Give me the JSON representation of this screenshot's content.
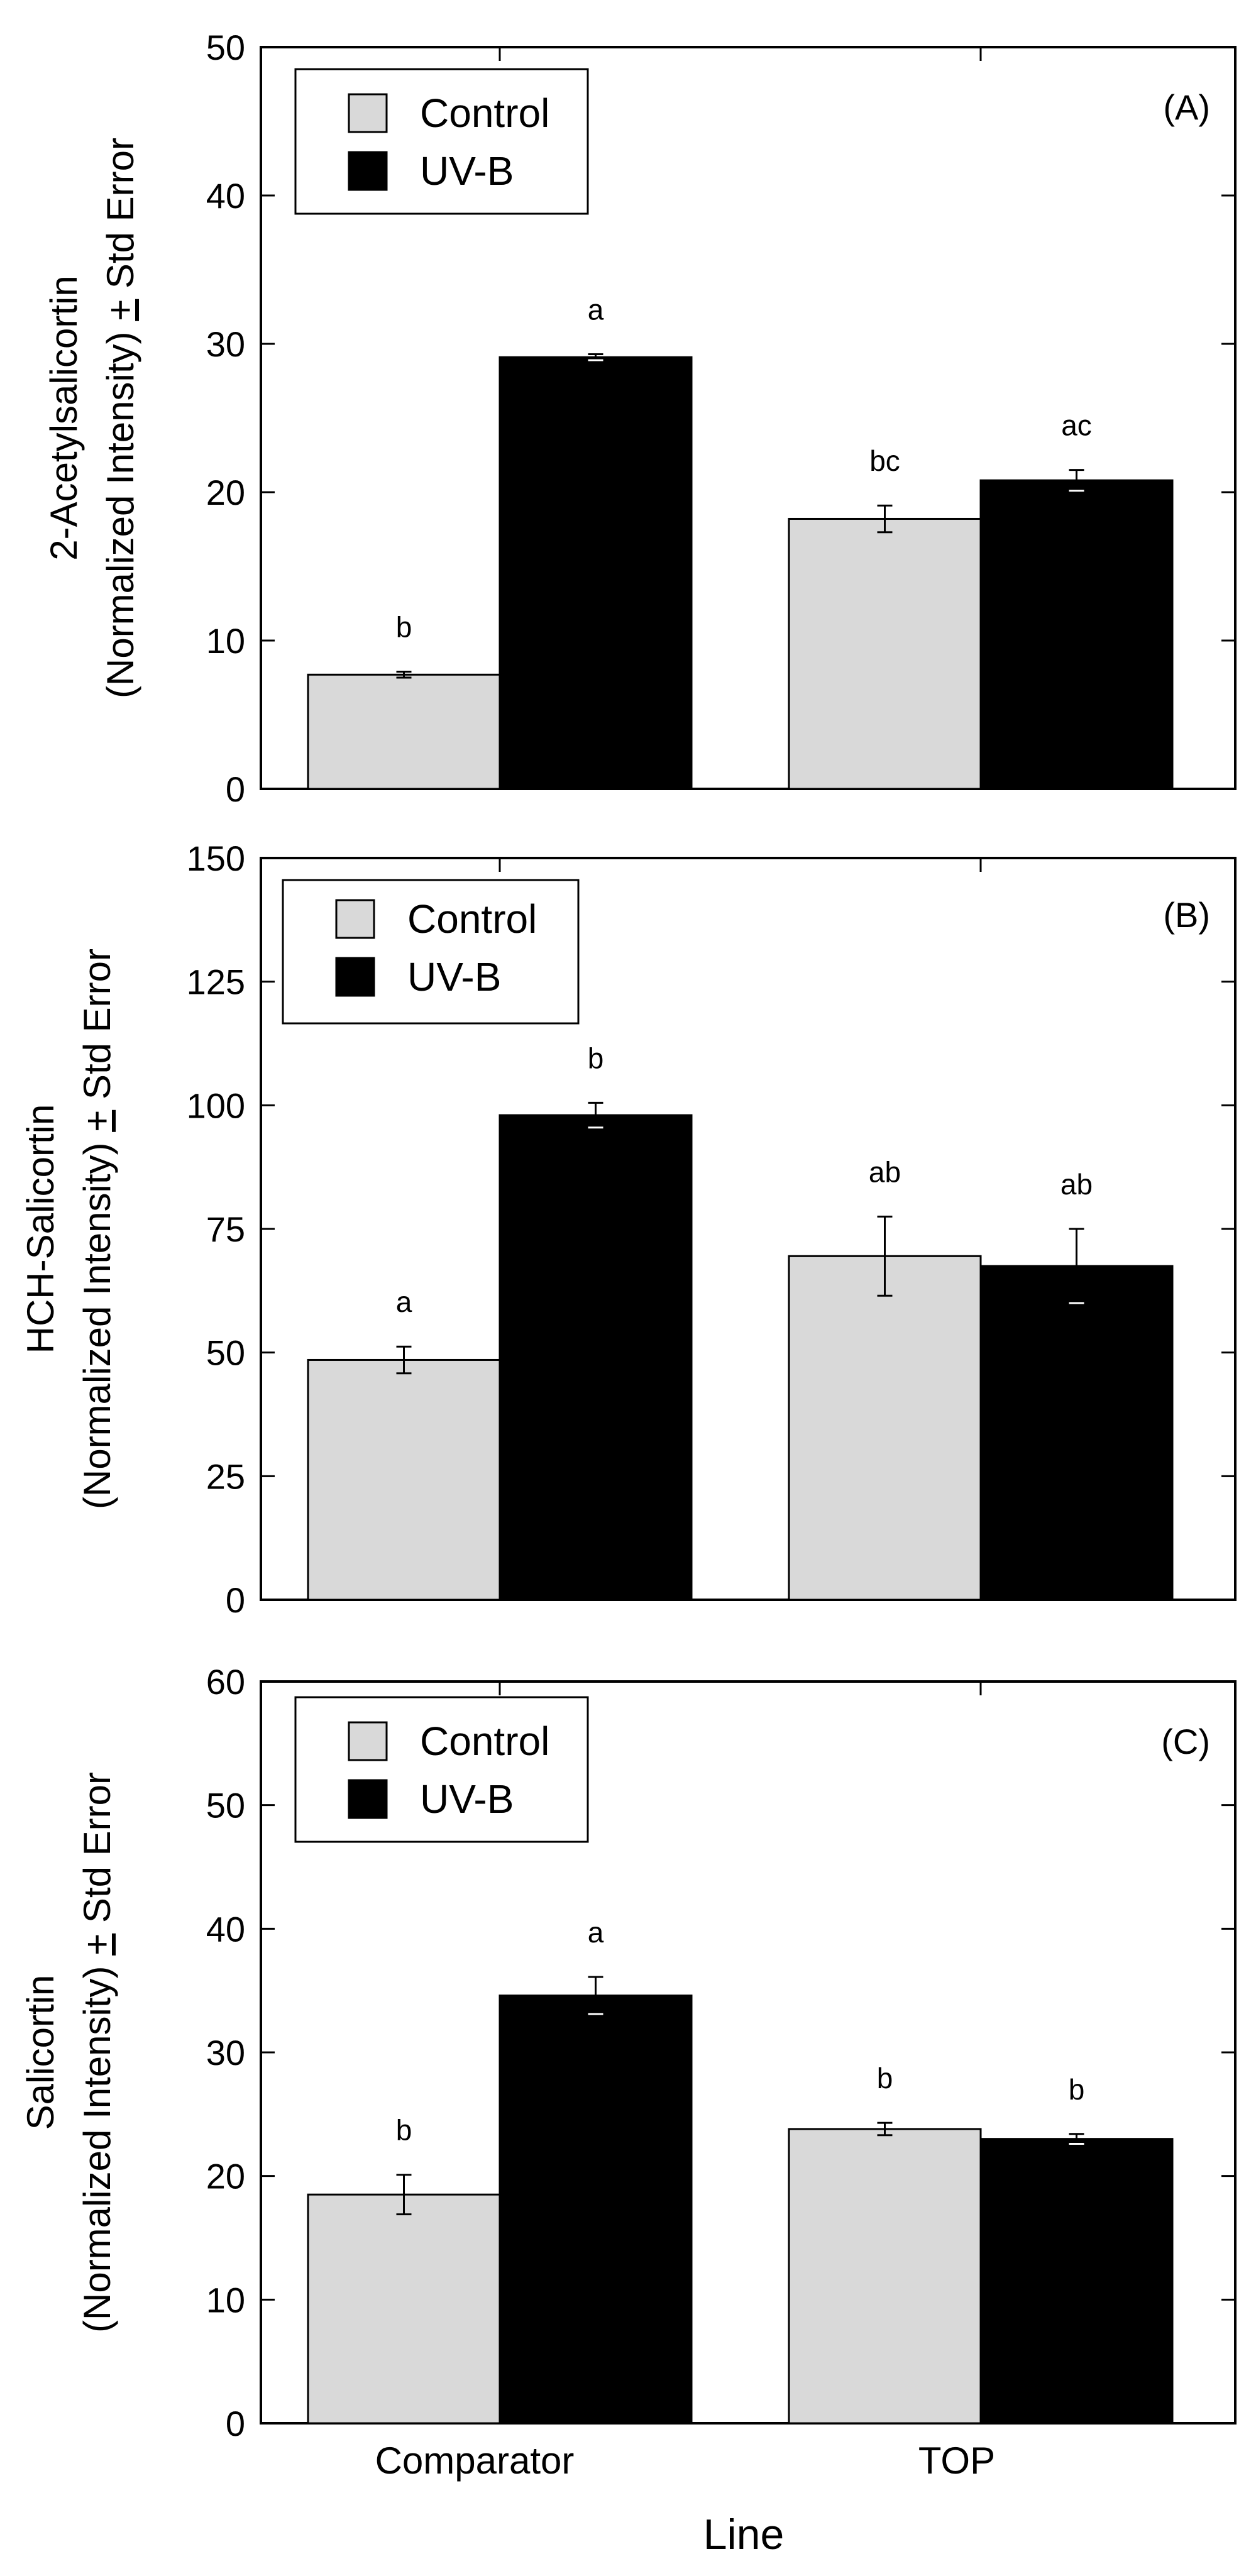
{
  "figure": {
    "x_axis_label": "Line"
  },
  "legend": {
    "control_label": "Control",
    "uvb_label": "UV-B"
  },
  "colors": {
    "control": "#d9d9d9",
    "uvb": "#000000",
    "axis": "#000000"
  },
  "chart_data": [
    {
      "type": "bar",
      "panel_label": "(A)",
      "ylabel_line1": "2-Acetylsalicortin",
      "ylabel_line2_pre": "(Normalized Intensity) ",
      "ylabel_pm": "+",
      "ylabel_line2_post": " Std Error",
      "categories": [
        "Comparator",
        "TOP"
      ],
      "ylim": [
        0,
        50
      ],
      "yticks": [
        "0",
        "10",
        "20",
        "30",
        "40",
        "50"
      ],
      "series": [
        {
          "name": "Control",
          "values": [
            7.7,
            18.2
          ],
          "errors": [
            0.2,
            0.9
          ],
          "letters": [
            "b",
            "bc"
          ]
        },
        {
          "name": "UV-B",
          "values": [
            29.1,
            20.8
          ],
          "errors": [
            0.2,
            0.7
          ],
          "letters": [
            "a",
            "ac"
          ]
        }
      ]
    },
    {
      "type": "bar",
      "panel_label": "(B)",
      "ylabel_line1": "HCH-Salicortin",
      "ylabel_line2_pre": "(Normalized Intensity) ",
      "ylabel_pm": "+",
      "ylabel_line2_post": " Std Error",
      "categories": [
        "Comparator",
        "TOP"
      ],
      "ylim": [
        0,
        150
      ],
      "yticks": [
        "0",
        "25",
        "50",
        "75",
        "100",
        "125",
        "150"
      ],
      "series": [
        {
          "name": "Control",
          "values": [
            48.5,
            69.5
          ],
          "errors": [
            2.7,
            8.0
          ],
          "letters": [
            "a",
            "ab"
          ]
        },
        {
          "name": "UV-B",
          "values": [
            98.0,
            67.5
          ],
          "errors": [
            2.5,
            7.5
          ],
          "letters": [
            "b",
            "ab"
          ]
        }
      ]
    },
    {
      "type": "bar",
      "panel_label": "(C)",
      "ylabel_line1": "Salicortin",
      "ylabel_line2_pre": "(Normalized Intensity) ",
      "ylabel_pm": "+",
      "ylabel_line2_post": " Std Error",
      "categories": [
        "Comparator",
        "TOP"
      ],
      "ylim": [
        0,
        60
      ],
      "yticks": [
        "0",
        "10",
        "20",
        "30",
        "40",
        "50",
        "60"
      ],
      "series": [
        {
          "name": "Control",
          "values": [
            18.5,
            23.8
          ],
          "errors": [
            1.6,
            0.5
          ],
          "letters": [
            "b",
            "b"
          ]
        },
        {
          "name": "UV-B",
          "values": [
            34.6,
            23.0
          ],
          "errors": [
            1.5,
            0.4
          ],
          "letters": [
            "a",
            "b"
          ]
        }
      ]
    }
  ]
}
